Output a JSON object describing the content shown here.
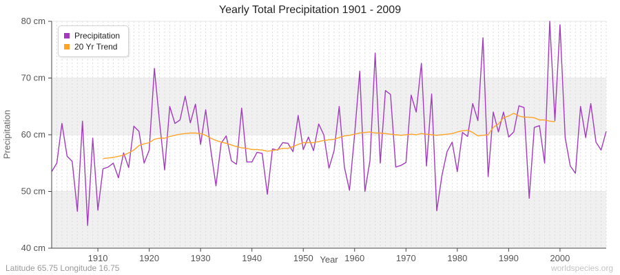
{
  "chart_data": {
    "type": "line",
    "title": "Yearly Total Precipitation 1901 - 2009",
    "xlabel": "Year",
    "ylabel": "Precipitation",
    "x_range": [
      1901,
      2009
    ],
    "ylim": [
      40,
      80
    ],
    "y_ticks": [
      {
        "value": 80,
        "label": "80 cm"
      },
      {
        "value": 70,
        "label": "70 cm"
      },
      {
        "value": 60,
        "label": "60 cm"
      },
      {
        "value": 50,
        "label": "50 cm"
      },
      {
        "value": 40,
        "label": "40 cm"
      }
    ],
    "x_ticks": [
      1910,
      1920,
      1930,
      1940,
      1950,
      1960,
      1970,
      1980,
      1990,
      2000
    ],
    "grid": {
      "vertical": "dashed line every year",
      "horizontal": "alternating gray bands every 10 cm"
    },
    "legend_position": "top-left",
    "series": [
      {
        "name": "Precipitation",
        "color": "#A239BF",
        "start_year": 1901,
        "values": [
          53.5,
          55,
          62,
          56.2,
          55.3,
          46.5,
          62.4,
          44,
          59.4,
          46.7,
          54,
          54.3,
          55,
          52.4,
          56.8,
          54.2,
          61.5,
          60.6,
          55,
          57.3,
          71.7,
          62.4,
          53.8,
          65,
          62,
          62.6,
          66.8,
          62.1,
          65.4,
          58.3,
          64.4,
          57.2,
          51,
          58.5,
          59.8,
          55.4,
          54.8,
          64.7,
          55.2,
          55.2,
          56.9,
          56.7,
          49.5,
          57.5,
          57.3,
          58.6,
          58.5,
          57,
          63.4,
          57.4,
          59.6,
          57.2,
          61.9,
          60,
          54.1,
          57.2,
          65,
          54.3,
          50.2,
          60.1,
          71.2,
          50,
          55.5,
          74.4,
          55,
          67.8,
          67.1,
          54.3,
          54.6,
          55.1,
          67,
          64,
          72.6,
          54.5,
          67.2,
          46.6,
          52.8,
          57,
          58.7,
          53.5,
          60.4,
          59.7,
          65.5,
          62.5,
          77.1,
          52.6,
          64,
          60.5,
          64,
          59.6,
          60.5,
          65.1,
          64.8,
          48.8,
          61.3,
          61.6,
          55,
          80,
          62.5,
          79.4,
          59.5,
          54.5,
          53.2,
          65,
          59.5,
          65.5,
          58.7,
          57.3,
          60.6
        ]
      },
      {
        "name": "20 Yr Trend",
        "color": "#FFA428",
        "start_year": 1911,
        "values": [
          55.8,
          55.9,
          56.0,
          56.2,
          56.4,
          56.8,
          57.3,
          58.1,
          58.4,
          58.6,
          59.2,
          59.4,
          59.4,
          59.7,
          59.9,
          60.1,
          60.2,
          60.3,
          60.3,
          60.2,
          59.9,
          59.4,
          59.0,
          58.7,
          58.5,
          58.2,
          57.9,
          57.7,
          57.6,
          57.4,
          57.4,
          57.3,
          57.1,
          57.2,
          57.4,
          57.6,
          57.6,
          57.9,
          58.3,
          58.6,
          58.6,
          58.6,
          58.8,
          59.0,
          59.1,
          59.2,
          59.5,
          59.8,
          59.9,
          60.1,
          60.3,
          60.4,
          60.5,
          60.3,
          60.3,
          60.2,
          60.1,
          60.0,
          59.9,
          60.0,
          60.1,
          60.0,
          60.2,
          60.1,
          60.0,
          59.9,
          60.0,
          60.1,
          60.2,
          60.5,
          60.7,
          60.8,
          60.4,
          59.8,
          59.9,
          60.0,
          61.3,
          61.9,
          63.0,
          63.3,
          63.8,
          63.3,
          63.1,
          63.1,
          63.0,
          62.6,
          62.6,
          62.4,
          62.3
        ]
      }
    ]
  },
  "footer": {
    "left": "Latitude 65.75 Longitude 16.75",
    "right": "worldspecies.org"
  },
  "colors": {
    "band": "#F0F0F0",
    "grid_dash": "#DBDBDB",
    "grid_solid": "#E6E6E6",
    "axis": "#444444",
    "tick_text": "#555555"
  }
}
